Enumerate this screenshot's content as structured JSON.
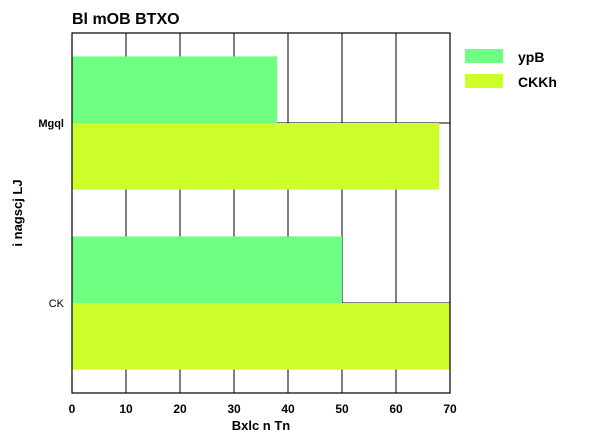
{
  "chart_data": {
    "type": "bar",
    "orientation": "horizontal",
    "title": "Bl mOB BTXO",
    "xlabel": "Bxlc n Tn",
    "ylabel": "i nagscj LJ",
    "categories": [
      "Mgql",
      "CK"
    ],
    "series": [
      {
        "name": "ypB",
        "values": [
          38,
          50
        ],
        "color": "#6eff82"
      },
      {
        "name": "CKKh",
        "values": [
          68,
          70
        ],
        "color": "#ccff2a"
      }
    ],
    "xlim": [
      0,
      70
    ],
    "xticks": [
      0,
      10,
      20,
      30,
      40,
      50,
      60,
      70
    ],
    "grid": true,
    "legend_position": "top-right"
  }
}
